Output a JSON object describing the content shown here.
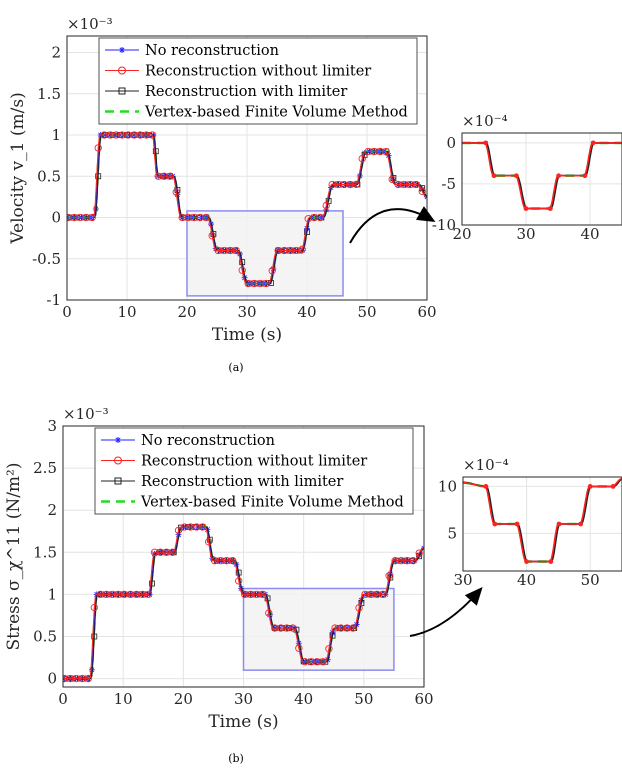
{
  "chart_data": [
    {
      "id": "a-main",
      "type": "line",
      "caption": "(a)",
      "xlabel": "Time (s)",
      "ylabel": "Velocity v_1 (m/s)",
      "exponent": "×10⁻³",
      "xlim": [
        0,
        60
      ],
      "ylim": [
        -1,
        2.2
      ],
      "xticks": [
        0,
        10,
        20,
        30,
        40,
        50,
        60
      ],
      "yticks": [
        -1,
        -0.5,
        0,
        0.5,
        1,
        1.5,
        2
      ],
      "ytick_labels": [
        "-1",
        "-0.5",
        "0",
        "0.5",
        "1",
        "1.5",
        "2"
      ],
      "grid": true,
      "legend_position": "top-left",
      "legend": [
        "No reconstruction",
        "Reconstruction without limiter",
        "Reconstruction with limiter",
        "Vertex-based Finite Volume Method"
      ],
      "zoom_box": {
        "x": [
          20,
          46
        ],
        "y": [
          -0.95,
          0.08
        ]
      },
      "profile": [
        [
          0,
          0
        ],
        [
          4.6,
          0
        ],
        [
          5.6,
          1.0
        ],
        [
          14.4,
          1.0
        ],
        [
          15.1,
          0.5
        ],
        [
          17.8,
          0.5
        ],
        [
          19.1,
          0.0
        ],
        [
          23.6,
          0.0
        ],
        [
          25.0,
          -0.4
        ],
        [
          28.5,
          -0.4
        ],
        [
          30.0,
          -0.8
        ],
        [
          33.8,
          -0.8
        ],
        [
          35.1,
          -0.4
        ],
        [
          39.2,
          -0.4
        ],
        [
          40.5,
          0.0
        ],
        [
          42.7,
          0.0
        ],
        [
          44.3,
          0.4
        ],
        [
          48.3,
          0.4
        ],
        [
          49.8,
          0.8
        ],
        [
          53.3,
          0.8
        ],
        [
          54.7,
          0.4
        ],
        [
          58.6,
          0.4
        ],
        [
          60.0,
          0.25
        ]
      ]
    },
    {
      "id": "a-inset",
      "type": "line",
      "exponent": "×10⁻⁴",
      "xlim": [
        20,
        45
      ],
      "ylim": [
        -10,
        1.2
      ],
      "xticks": [
        20,
        30,
        40
      ],
      "yticks": [
        -10,
        -5,
        0
      ],
      "ytick_labels": [
        "-10",
        "-5",
        "0"
      ],
      "grid": true,
      "profile": [
        [
          20,
          0
        ],
        [
          23.7,
          0
        ],
        [
          25.0,
          -4
        ],
        [
          28.5,
          -4
        ],
        [
          30.0,
          -8
        ],
        [
          33.8,
          -8
        ],
        [
          35.1,
          -4
        ],
        [
          39.2,
          -4
        ],
        [
          40.5,
          0
        ],
        [
          45,
          0
        ]
      ]
    },
    {
      "id": "b-main",
      "type": "line",
      "caption": "(b)",
      "xlabel": "Time (s)",
      "ylabel": "Stress σ_χ^11 (N/m²)",
      "exponent": "×10⁻³",
      "xlim": [
        0,
        60
      ],
      "ylim": [
        -0.1,
        3
      ],
      "xticks": [
        0,
        10,
        20,
        30,
        40,
        50,
        60
      ],
      "yticks": [
        0,
        0.5,
        1,
        1.5,
        2,
        2.5,
        3
      ],
      "ytick_labels": [
        "0",
        "0.5",
        "1",
        "1.5",
        "2",
        "2.5",
        "3"
      ],
      "grid": true,
      "legend_position": "top-left",
      "legend": [
        "No reconstruction",
        "Reconstruction without limiter",
        "Reconstruction with limiter",
        "Vertex-based Finite Volume Method"
      ],
      "zoom_box": {
        "x": [
          30,
          55
        ],
        "y": [
          0.1,
          1.07
        ]
      },
      "profile": [
        [
          0,
          0
        ],
        [
          4.6,
          0
        ],
        [
          5.6,
          1.0
        ],
        [
          14.4,
          1.0
        ],
        [
          15.3,
          1.5
        ],
        [
          18.5,
          1.5
        ],
        [
          19.6,
          1.8
        ],
        [
          23.8,
          1.8
        ],
        [
          25.0,
          1.4
        ],
        [
          28.5,
          1.4
        ],
        [
          30.0,
          1.0
        ],
        [
          33.6,
          1.0
        ],
        [
          35.0,
          0.6
        ],
        [
          38.5,
          0.6
        ],
        [
          40.0,
          0.2
        ],
        [
          43.8,
          0.2
        ],
        [
          45.1,
          0.6
        ],
        [
          48.5,
          0.6
        ],
        [
          50.0,
          1.0
        ],
        [
          53.6,
          1.0
        ],
        [
          55.0,
          1.4
        ],
        [
          58.5,
          1.4
        ],
        [
          60,
          1.55
        ]
      ]
    },
    {
      "id": "b-inset",
      "type": "line",
      "exponent": "×10⁻⁴",
      "xlim": [
        30,
        55
      ],
      "ylim": [
        1,
        11
      ],
      "xticks": [
        30,
        40,
        50
      ],
      "yticks": [
        5,
        10
      ],
      "ytick_labels": [
        "5",
        "10"
      ],
      "grid": true,
      "profile": [
        [
          30,
          10.4
        ],
        [
          33.6,
          10
        ],
        [
          35.0,
          6
        ],
        [
          38.5,
          6
        ],
        [
          40.0,
          2
        ],
        [
          43.8,
          2
        ],
        [
          45.1,
          6
        ],
        [
          48.5,
          6
        ],
        [
          50.0,
          10
        ],
        [
          53.6,
          10
        ],
        [
          55,
          10.8
        ]
      ]
    }
  ],
  "series_colors": {
    "No reconstruction": "#1f1fff",
    "Reconstruction without limiter": "#ff2222",
    "Reconstruction with limiter": "#222222",
    "Vertex-based Finite Volume Method": "#22dd22"
  },
  "zoom_box_color": "#8c8cf0"
}
